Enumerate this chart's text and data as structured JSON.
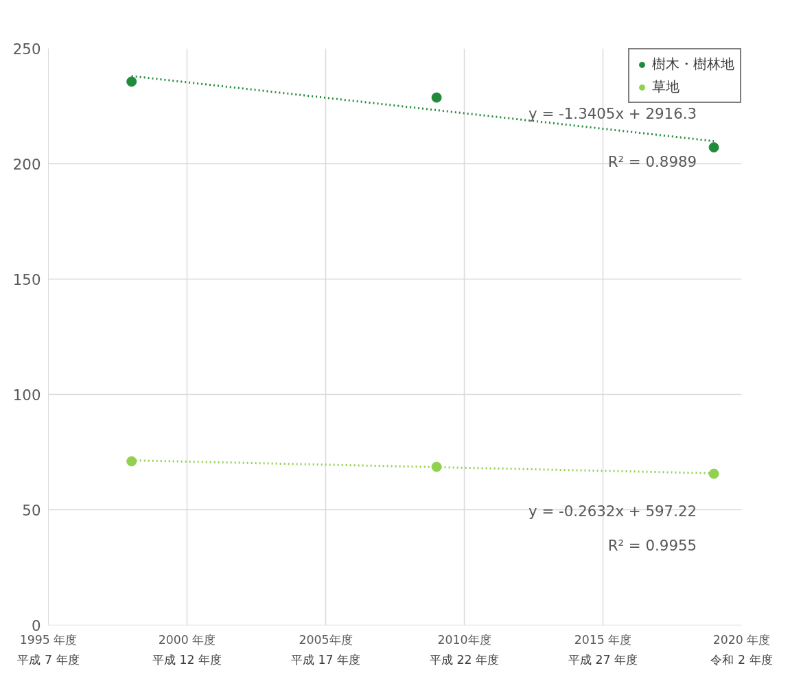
{
  "chart_data": {
    "type": "scatter",
    "xlim": [
      1995,
      2020
    ],
    "ylim": [
      0,
      250
    ],
    "xticks": [
      {
        "value": 1995,
        "label": "1995 年度"
      },
      {
        "value": 2000,
        "label": "2000 年度"
      },
      {
        "value": 2005,
        "label": "2005年度"
      },
      {
        "value": 2010,
        "label": "2010年度"
      },
      {
        "value": 2015,
        "label": "2015 年度"
      },
      {
        "value": 2020,
        "label": "2020 年度"
      }
    ],
    "yticks": [
      0,
      50,
      100,
      150,
      200,
      250
    ],
    "grid": true,
    "legend": "top right",
    "marker": "circle",
    "series": [
      {
        "type": "scatter",
        "name": "樹木・樹林地",
        "color": "#228b3b",
        "x": [
          1998,
          2009,
          2019
        ],
        "values": [
          235.6,
          228.7,
          207.1
        ]
      },
      {
        "type": "scatter",
        "name": "草地",
        "color": "#92d050",
        "x": [
          1998,
          2009,
          2019
        ],
        "values": [
          71.0,
          68.6,
          65.6
        ]
      },
      {
        "type": "line",
        "color": "#228b3b",
        "line_style": "dotted",
        "marker": "none",
        "x": [
          1998,
          2019
        ],
        "values": [
          238,
          209.8
        ]
      },
      {
        "type": "line",
        "color": "#92d050",
        "line_style": "dotted",
        "marker": "none",
        "x": [
          1998,
          2019
        ],
        "values": [
          71.4,
          65.8
        ]
      }
    ],
    "annotations": [
      "y = -1.3405x + 2916.3",
      "R² = 0.8989",
      "y = -0.2632x + 597.22",
      "R² = 0.9955",
      "平成 7 年度",
      "平成 12 年度",
      "平成 17 年度",
      "平成 22 年度",
      "平成 27 年度",
      "令和 2 年度"
    ]
  }
}
